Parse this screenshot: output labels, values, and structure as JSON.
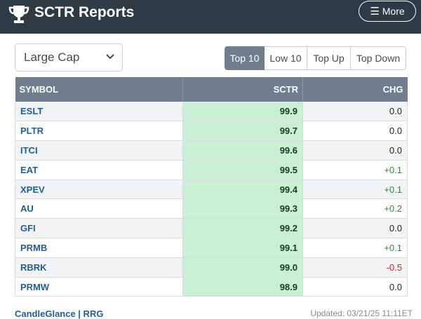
{
  "header": {
    "title": "SCTR Reports",
    "more_label": "More"
  },
  "filter": {
    "selected": "Large Cap"
  },
  "tabs": [
    {
      "label": "Top 10",
      "active": true
    },
    {
      "label": "Low 10",
      "active": false
    },
    {
      "label": "Top Up",
      "active": false
    },
    {
      "label": "Top Down",
      "active": false
    }
  ],
  "table": {
    "columns": [
      "SYMBOL",
      "SCTR",
      "CHG"
    ],
    "rows": [
      {
        "symbol": "ESLT",
        "sctr": "99.9",
        "chg": "0.0",
        "trend": "flat"
      },
      {
        "symbol": "PLTR",
        "sctr": "99.7",
        "chg": "0.0",
        "trend": "flat"
      },
      {
        "symbol": "ITCI",
        "sctr": "99.6",
        "chg": "0.0",
        "trend": "flat"
      },
      {
        "symbol": "EAT",
        "sctr": "99.5",
        "chg": "+0.1",
        "trend": "up"
      },
      {
        "symbol": "XPEV",
        "sctr": "99.4",
        "chg": "+0.1",
        "trend": "up"
      },
      {
        "symbol": "AU",
        "sctr": "99.3",
        "chg": "+0.2",
        "trend": "up"
      },
      {
        "symbol": "GFI",
        "sctr": "99.2",
        "chg": "0.0",
        "trend": "flat"
      },
      {
        "symbol": "PRMB",
        "sctr": "99.1",
        "chg": "+0.1",
        "trend": "up"
      },
      {
        "symbol": "RBRK",
        "sctr": "99.0",
        "chg": "-0.5",
        "trend": "down"
      },
      {
        "symbol": "PRMW",
        "sctr": "98.9",
        "chg": "0.0",
        "trend": "flat"
      }
    ]
  },
  "footer": {
    "left": "CandleGlance | RRG",
    "right": "Updated: 03/21/25 11:11ET"
  },
  "colors": {
    "header_bg": "#2e3b45",
    "accent": "#6f7d8c",
    "sctr_bg": "#c9f0d3",
    "positive": "#2c8a36",
    "negative": "#d42020",
    "link": "#1f5f99"
  },
  "icons": {
    "logo": "trophy-icon",
    "menu": "hamburger-icon",
    "dropdown": "chevron-down-icon"
  }
}
